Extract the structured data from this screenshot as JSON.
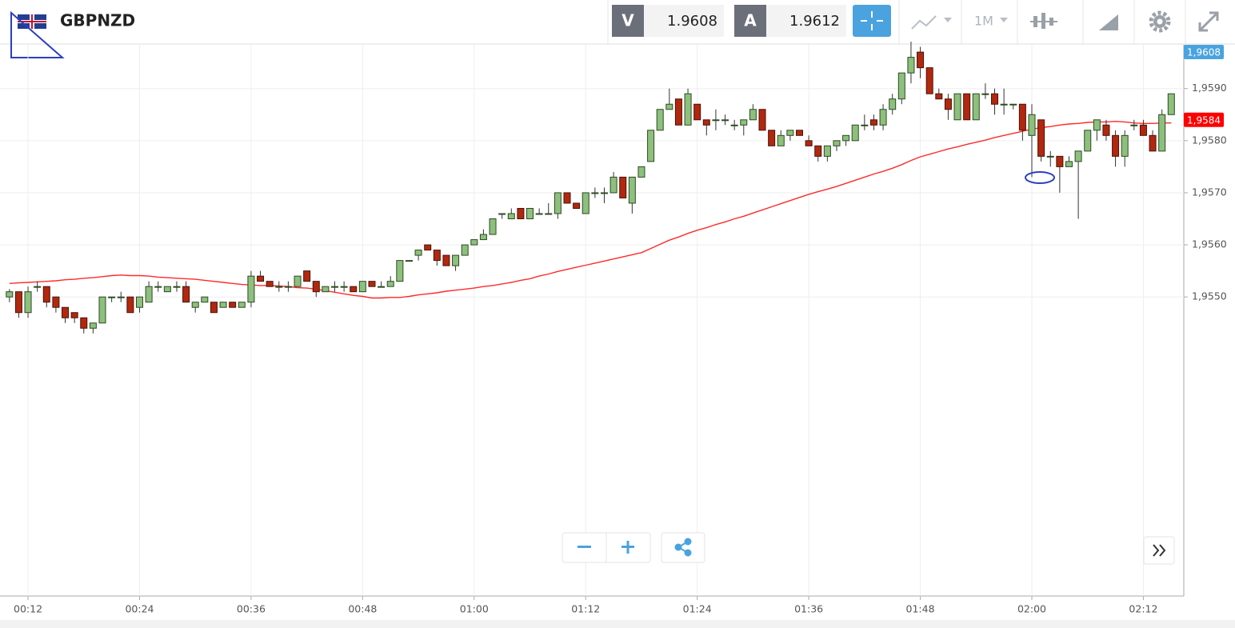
{
  "toolbar": {
    "symbol": "GBPNZD",
    "sell_label": "V",
    "sell_price": "1.9608",
    "buy_label": "A",
    "buy_price": "1.9612",
    "timeframe": "1M"
  },
  "chart_data": {
    "type": "candlestick",
    "categories": [
      null,
      null,
      "00:12",
      null,
      null,
      null,
      null,
      null,
      null,
      null,
      null,
      null,
      null,
      null,
      "00:24",
      null,
      null,
      null,
      null,
      null,
      null,
      null,
      null,
      null,
      null,
      null,
      "00:36",
      null,
      null,
      null,
      null,
      null,
      null,
      null,
      null,
      null,
      null,
      null,
      "00:48",
      null,
      null,
      null,
      null,
      null,
      null,
      null,
      null,
      null,
      null,
      null,
      "01:00",
      null,
      null,
      null,
      null,
      null,
      null,
      null,
      null,
      null,
      null,
      null,
      "01:12",
      null,
      null,
      null,
      null,
      null,
      null,
      null,
      null,
      null,
      null,
      null,
      "01:24",
      null,
      null,
      null,
      null,
      null,
      null,
      null,
      null,
      null,
      null,
      null,
      "01:36",
      null,
      null,
      null,
      null,
      null,
      null,
      null,
      null,
      null,
      null,
      null,
      "01:48",
      null,
      null,
      null,
      null,
      null,
      null,
      null,
      null,
      null,
      null,
      null,
      "02:00",
      null,
      null,
      null,
      null,
      null,
      null,
      null,
      null,
      null,
      null,
      null,
      "02:12",
      null,
      null,
      null
    ],
    "ohlc": [
      [
        1.955,
        1.95515,
        1.9549,
        1.9551
      ],
      [
        1.9551,
        1.9551,
        1.9546,
        1.9547
      ],
      [
        1.9547,
        1.9552,
        1.9546,
        1.9551
      ],
      [
        1.9552,
        1.9553,
        1.9551,
        1.9552
      ],
      [
        1.9552,
        1.9552,
        1.9548,
        1.9549
      ],
      [
        1.955,
        1.955,
        1.9547,
        1.9548
      ],
      [
        1.9548,
        1.9548,
        1.9545,
        1.9546
      ],
      [
        1.9547,
        1.9547,
        1.9545,
        1.9546
      ],
      [
        1.9546,
        1.9546,
        1.9543,
        1.9544
      ],
      [
        1.9544,
        1.9545,
        1.9543,
        1.9545
      ],
      [
        1.9545,
        1.955,
        1.9545,
        1.955
      ],
      [
        1.955,
        1.955,
        1.9549,
        1.955
      ],
      [
        1.955,
        1.9551,
        1.9549,
        1.955
      ],
      [
        1.955,
        1.955,
        1.9547,
        1.9547
      ],
      [
        1.9548,
        1.955,
        1.9547,
        1.955
      ],
      [
        1.9549,
        1.9553,
        1.9549,
        1.9552
      ],
      [
        1.9552,
        1.9553,
        1.9551,
        1.9552
      ],
      [
        1.9551,
        1.9552,
        1.9551,
        1.9552
      ],
      [
        1.9552,
        1.9553,
        1.9551,
        1.9552
      ],
      [
        1.9552,
        1.9553,
        1.9549,
        1.9549
      ],
      [
        1.9548,
        1.9549,
        1.9547,
        1.9549
      ],
      [
        1.9549,
        1.955,
        1.9549,
        1.955
      ],
      [
        1.9549,
        1.9549,
        1.9547,
        1.9547
      ],
      [
        1.9548,
        1.9549,
        1.9548,
        1.9549
      ],
      [
        1.9549,
        1.9549,
        1.9548,
        1.9548
      ],
      [
        1.9548,
        1.9549,
        1.9548,
        1.9549
      ],
      [
        1.9549,
        1.9555,
        1.9548,
        1.9554
      ],
      [
        1.9554,
        1.9555,
        1.9553,
        1.9553
      ],
      [
        1.9553,
        1.9553,
        1.9552,
        1.9552
      ],
      [
        1.9552,
        1.9553,
        1.9551,
        1.9552
      ],
      [
        1.9552,
        1.9553,
        1.9551,
        1.9552
      ],
      [
        1.9552,
        1.9554,
        1.9552,
        1.9554
      ],
      [
        1.9555,
        1.9555,
        1.9553,
        1.9553
      ],
      [
        1.9553,
        1.9553,
        1.955,
        1.9551
      ],
      [
        1.9551,
        1.9552,
        1.9551,
        1.9552
      ],
      [
        1.9552,
        1.9553,
        1.9551,
        1.9552
      ],
      [
        1.9552,
        1.9553,
        1.9551,
        1.9552
      ],
      [
        1.9552,
        1.9552,
        1.9551,
        1.9551
      ],
      [
        1.9551,
        1.9553,
        1.9551,
        1.9553
      ],
      [
        1.9553,
        1.9553,
        1.9552,
        1.9552
      ],
      [
        1.9552,
        1.9553,
        1.9552,
        1.9552
      ],
      [
        1.9552,
        1.9554,
        1.9552,
        1.9553
      ],
      [
        1.9553,
        1.9557,
        1.9553,
        1.9557
      ],
      [
        1.9557,
        1.9557,
        1.9557,
        1.9557
      ],
      [
        1.9558,
        1.9559,
        1.9557,
        1.9559
      ],
      [
        1.956,
        1.956,
        1.9559,
        1.9559
      ],
      [
        1.9559,
        1.9559,
        1.9556,
        1.9557
      ],
      [
        1.9558,
        1.9558,
        1.9556,
        1.9556
      ],
      [
        1.9556,
        1.9558,
        1.9555,
        1.9558
      ],
      [
        1.9558,
        1.956,
        1.9558,
        1.956
      ],
      [
        1.956,
        1.9561,
        1.956,
        1.9561
      ],
      [
        1.9561,
        1.9563,
        1.9561,
        1.9562
      ],
      [
        1.9562,
        1.9565,
        1.9562,
        1.9565
      ],
      [
        1.9566,
        1.9566,
        1.9565,
        1.9566
      ],
      [
        1.9565,
        1.9567,
        1.9565,
        1.9566
      ],
      [
        1.9567,
        1.9567,
        1.9565,
        1.9565
      ],
      [
        1.9565,
        1.9567,
        1.9565,
        1.9567
      ],
      [
        1.9566,
        1.9567,
        1.9566,
        1.9566
      ],
      [
        1.9566,
        1.9568,
        1.9566,
        1.9566
      ],
      [
        1.9566,
        1.957,
        1.9565,
        1.957
      ],
      [
        1.957,
        1.957,
        1.9568,
        1.9568
      ],
      [
        1.9568,
        1.9568,
        1.9567,
        1.9567
      ],
      [
        1.9566,
        1.957,
        1.9566,
        1.957
      ],
      [
        1.957,
        1.9571,
        1.9569,
        1.957
      ],
      [
        1.957,
        1.9571,
        1.9568,
        1.957
      ],
      [
        1.957,
        1.9574,
        1.957,
        1.9573
      ],
      [
        1.9573,
        1.9573,
        1.9569,
        1.9569
      ],
      [
        1.9568,
        1.9573,
        1.9566,
        1.9573
      ],
      [
        1.9573,
        1.9575,
        1.9573,
        1.9575
      ],
      [
        1.9576,
        1.9582,
        1.9576,
        1.9582
      ],
      [
        1.9582,
        1.9586,
        1.9582,
        1.9586
      ],
      [
        1.9586,
        1.959,
        1.9586,
        1.9587
      ],
      [
        1.9588,
        1.9588,
        1.9583,
        1.9583
      ],
      [
        1.9583,
        1.959,
        1.9583,
        1.9589
      ],
      [
        1.9587,
        1.9587,
        1.9584,
        1.9584
      ],
      [
        1.9584,
        1.9584,
        1.9581,
        1.9583
      ],
      [
        1.9584,
        1.9586,
        1.9582,
        1.9584
      ],
      [
        1.9584,
        1.9585,
        1.9583,
        1.9584
      ],
      [
        1.9583,
        1.9584,
        1.9582,
        1.9583
      ],
      [
        1.9583,
        1.9584,
        1.9581,
        1.9584
      ],
      [
        1.9584,
        1.9587,
        1.9584,
        1.9586
      ],
      [
        1.9586,
        1.9586,
        1.9582,
        1.9582
      ],
      [
        1.9582,
        1.9582,
        1.9579,
        1.9579
      ],
      [
        1.9579,
        1.9582,
        1.9579,
        1.9581
      ],
      [
        1.9581,
        1.9582,
        1.958,
        1.9582
      ],
      [
        1.9582,
        1.9582,
        1.9581,
        1.9581
      ],
      [
        1.958,
        1.9581,
        1.9579,
        1.9579
      ],
      [
        1.9579,
        1.9579,
        1.9576,
        1.9577
      ],
      [
        1.9577,
        1.9579,
        1.9576,
        1.9579
      ],
      [
        1.9579,
        1.958,
        1.9578,
        1.958
      ],
      [
        1.958,
        1.9581,
        1.9579,
        1.9581
      ],
      [
        1.958,
        1.9583,
        1.958,
        1.9583
      ],
      [
        1.9583,
        1.9585,
        1.9582,
        1.9583
      ],
      [
        1.9584,
        1.9585,
        1.9582,
        1.9583
      ],
      [
        1.9583,
        1.9587,
        1.9582,
        1.9586
      ],
      [
        1.9586,
        1.9589,
        1.9585,
        1.9588
      ],
      [
        1.9588,
        1.9593,
        1.9587,
        1.9593
      ],
      [
        1.9593,
        1.9599,
        1.9591,
        1.9596
      ],
      [
        1.9597,
        1.9598,
        1.9592,
        1.9594
      ],
      [
        1.9594,
        1.9594,
        1.9589,
        1.9589
      ],
      [
        1.9589,
        1.959,
        1.9588,
        1.9588
      ],
      [
        1.9588,
        1.9589,
        1.9584,
        1.9586
      ],
      [
        1.9584,
        1.9589,
        1.9584,
        1.9589
      ],
      [
        1.9589,
        1.9589,
        1.9584,
        1.9584
      ],
      [
        1.9584,
        1.9589,
        1.9584,
        1.9589
      ],
      [
        1.9589,
        1.9591,
        1.9588,
        1.9589
      ],
      [
        1.9589,
        1.959,
        1.9585,
        1.9587
      ],
      [
        1.9587,
        1.959,
        1.9585,
        1.9587
      ],
      [
        1.9587,
        1.9587,
        1.9586,
        1.9587
      ],
      [
        1.9587,
        1.9587,
        1.958,
        1.9582
      ],
      [
        1.9581,
        1.9587,
        1.9573,
        1.9585
      ],
      [
        1.9584,
        1.9584,
        1.9576,
        1.9577
      ],
      [
        1.9577,
        1.9578,
        1.9575,
        1.9577
      ],
      [
        1.9577,
        1.9577,
        1.957,
        1.9575
      ],
      [
        1.9575,
        1.9577,
        1.9575,
        1.9576
      ],
      [
        1.9576,
        1.9578,
        1.9565,
        1.9578
      ],
      [
        1.9578,
        1.9582,
        1.9578,
        1.9582
      ],
      [
        1.9582,
        1.9584,
        1.958,
        1.9584
      ],
      [
        1.9583,
        1.9584,
        1.958,
        1.9581
      ],
      [
        1.9581,
        1.9582,
        1.9575,
        1.9577
      ],
      [
        1.9577,
        1.9582,
        1.9575,
        1.9581
      ],
      [
        1.9583,
        1.9584,
        1.9582,
        1.9583
      ],
      [
        1.9583,
        1.9584,
        1.9581,
        1.9581
      ],
      [
        1.9581,
        1.9582,
        1.9578,
        1.9578
      ],
      [
        1.9578,
        1.9586,
        1.9578,
        1.9585
      ],
      [
        1.9585,
        1.9589,
        1.9585,
        1.9589
      ]
    ],
    "up_color": "#8dc07c",
    "down_color": "#b1280f",
    "ma": {
      "color": "#ff2a2a",
      "values": [
        1.95526,
        1.95527,
        1.95528,
        1.95529,
        1.9553,
        1.95531,
        1.95533,
        1.95534,
        1.95536,
        1.95537,
        1.95539,
        1.95541,
        1.95542,
        1.95541,
        1.95541,
        1.9554,
        1.95538,
        1.95537,
        1.95536,
        1.95535,
        1.95534,
        1.95532,
        1.9553,
        1.95528,
        1.95526,
        1.95524,
        1.95523,
        1.95522,
        1.95522,
        1.95521,
        1.9552,
        1.95518,
        1.95517,
        1.95515,
        1.95512,
        1.95509,
        1.95506,
        1.95503,
        1.95501,
        1.95498,
        1.95498,
        1.95499,
        1.95499,
        1.95501,
        1.95504,
        1.95506,
        1.95508,
        1.95511,
        1.95513,
        1.95515,
        1.95517,
        1.9552,
        1.95522,
        1.95525,
        1.95528,
        1.95532,
        1.95535,
        1.9554,
        1.95544,
        1.95549,
        1.95553,
        1.95557,
        1.95561,
        1.95565,
        1.95569,
        1.95573,
        1.95577,
        1.95581,
        1.95585,
        1.95593,
        1.95601,
        1.95609,
        1.95615,
        1.95622,
        1.95628,
        1.95633,
        1.95639,
        1.95644,
        1.9565,
        1.95655,
        1.95661,
        1.95667,
        1.95673,
        1.95679,
        1.95685,
        1.95691,
        1.95697,
        1.95702,
        1.95707,
        1.95712,
        1.95718,
        1.95724,
        1.9573,
        1.95736,
        1.95741,
        1.95747,
        1.95754,
        1.95762,
        1.95769,
        1.95774,
        1.95779,
        1.95784,
        1.95788,
        1.95793,
        1.95797,
        1.95801,
        1.95806,
        1.9581,
        1.95814,
        1.95818,
        1.95822,
        1.95825,
        1.95827,
        1.9583,
        1.95832,
        1.95833,
        1.95835,
        1.95836,
        1.95836,
        1.95837,
        1.95836,
        1.95834,
        1.95833,
        1.95833,
        1.95834,
        1.95834
      ]
    },
    "ylim": [
      1.94926,
      1.95984
    ],
    "yticks": [
      {
        "value": 1.955,
        "label": "1,9550"
      },
      {
        "value": 1.956,
        "label": "1,9560"
      },
      {
        "value": 1.957,
        "label": "1,9570"
      },
      {
        "value": 1.958,
        "label": "1,9580"
      },
      {
        "value": 1.959,
        "label": "1,9590"
      }
    ],
    "grid": true,
    "price_badges": [
      {
        "value": 1.9608,
        "label": "1,9608",
        "color": "#4aa3df"
      },
      {
        "value": 1.9584,
        "label": "1,9584",
        "color": "#ff0000"
      }
    ]
  }
}
